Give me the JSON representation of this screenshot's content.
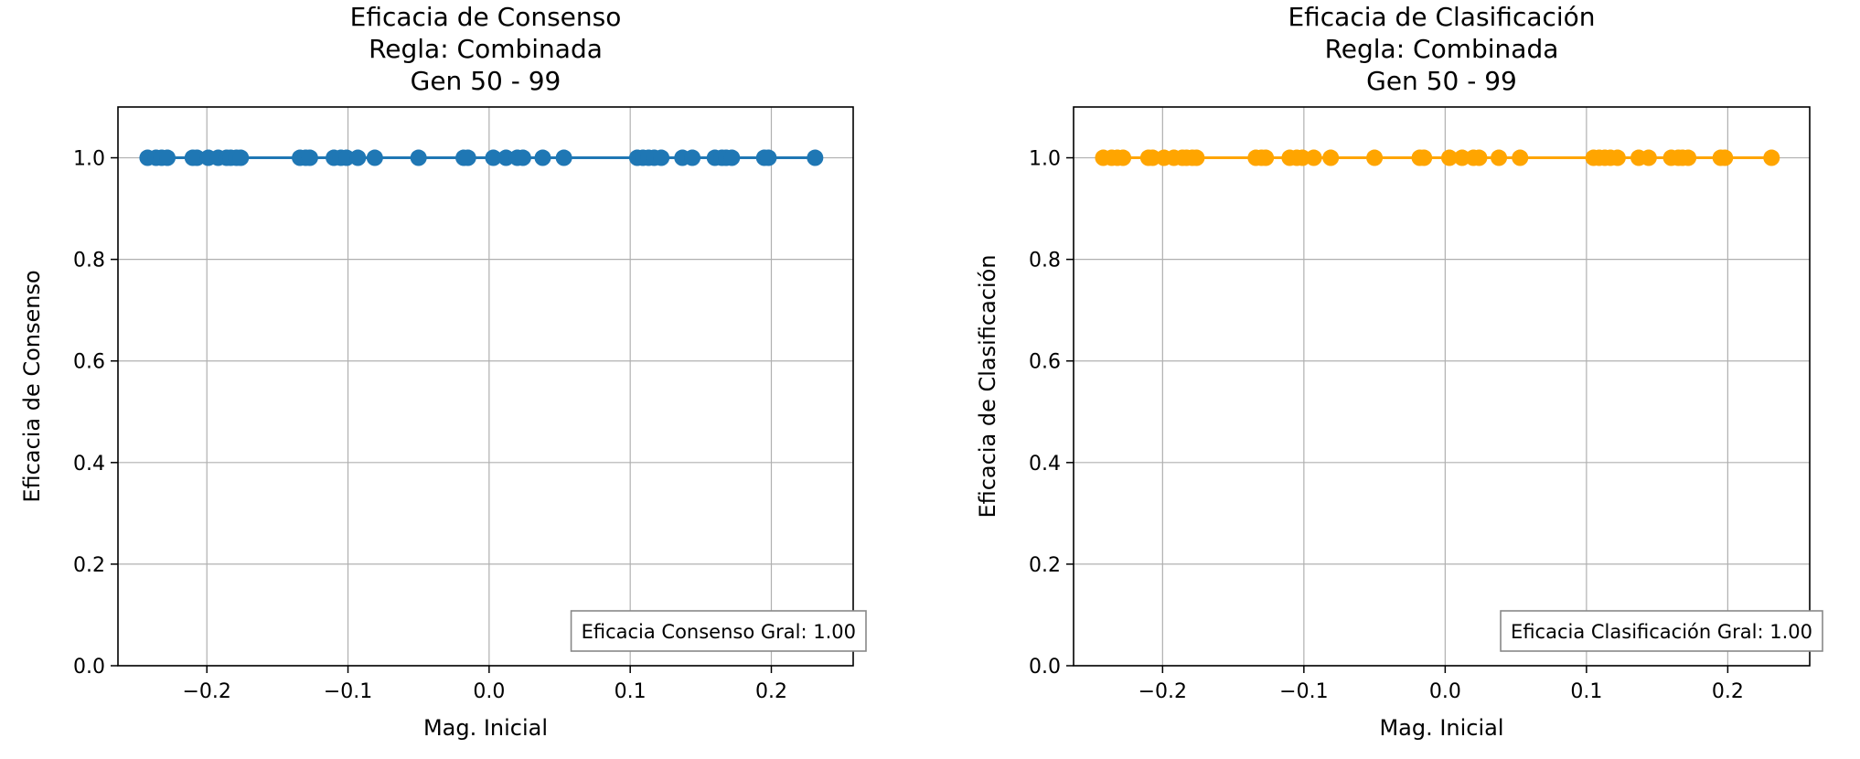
{
  "chart_data": [
    {
      "type": "scatter",
      "title_lines": [
        "Eficacia de Consenso",
        "Regla: Combinada",
        "Gen 50 - 99"
      ],
      "xlabel": "Mag. Inicial",
      "ylabel": "Eficacia de Consenso",
      "xlim": [
        -0.263,
        0.258
      ],
      "ylim": [
        0.0,
        1.1
      ],
      "xticks": [
        -0.2,
        -0.1,
        0.0,
        0.1,
        0.2
      ],
      "xtick_labels": [
        "−0.2",
        "−0.1",
        "0.0",
        "0.1",
        "0.2"
      ],
      "yticks": [
        0.0,
        0.2,
        0.4,
        0.6,
        0.8,
        1.0
      ],
      "ytick_labels": [
        "0.0",
        "0.2",
        "0.4",
        "0.6",
        "0.8",
        "1.0"
      ],
      "grid": true,
      "color": "#1f77b4",
      "annotation": "Eficacia Consenso Gral: 1.00",
      "annotation_position": "bottom-right",
      "series": [
        {
          "x": [
            -0.242,
            -0.236,
            -0.232,
            -0.228,
            -0.21,
            -0.207,
            -0.199,
            -0.192,
            -0.186,
            -0.183,
            -0.179,
            -0.176,
            -0.134,
            -0.13,
            -0.127,
            -0.11,
            -0.105,
            -0.101,
            -0.093,
            -0.081,
            -0.05,
            -0.018,
            -0.015,
            0.003,
            0.012,
            0.02,
            0.024,
            0.038,
            0.053,
            0.105,
            0.109,
            0.113,
            0.117,
            0.122,
            0.137,
            0.144,
            0.16,
            0.165,
            0.168,
            0.172,
            0.195,
            0.198,
            0.231
          ],
          "y": [
            1,
            1,
            1,
            1,
            1,
            1,
            1,
            1,
            1,
            1,
            1,
            1,
            1,
            1,
            1,
            1,
            1,
            1,
            1,
            1,
            1,
            1,
            1,
            1,
            1,
            1,
            1,
            1,
            1,
            1,
            1,
            1,
            1,
            1,
            1,
            1,
            1,
            1,
            1,
            1,
            1,
            1,
            1
          ]
        }
      ]
    },
    {
      "type": "scatter",
      "title_lines": [
        "Eficacia de Clasificación",
        "Regla: Combinada",
        "Gen 50 - 99"
      ],
      "xlabel": "Mag. Inicial",
      "ylabel": "Eficacia de Clasificación",
      "xlim": [
        -0.263,
        0.258
      ],
      "ylim": [
        0.0,
        1.1
      ],
      "xticks": [
        -0.2,
        -0.1,
        0.0,
        0.1,
        0.2
      ],
      "xtick_labels": [
        "−0.2",
        "−0.1",
        "0.0",
        "0.1",
        "0.2"
      ],
      "yticks": [
        0.0,
        0.2,
        0.4,
        0.6,
        0.8,
        1.0
      ],
      "ytick_labels": [
        "0.0",
        "0.2",
        "0.4",
        "0.6",
        "0.8",
        "1.0"
      ],
      "grid": true,
      "color": "#ffa500",
      "annotation": "Eficacia Clasificación Gral: 1.00",
      "annotation_position": "bottom-right",
      "series": [
        {
          "x": [
            -0.242,
            -0.236,
            -0.232,
            -0.228,
            -0.21,
            -0.207,
            -0.199,
            -0.192,
            -0.186,
            -0.183,
            -0.179,
            -0.176,
            -0.134,
            -0.13,
            -0.127,
            -0.11,
            -0.105,
            -0.101,
            -0.093,
            -0.081,
            -0.05,
            -0.018,
            -0.015,
            0.003,
            0.012,
            0.02,
            0.024,
            0.038,
            0.053,
            0.105,
            0.109,
            0.113,
            0.117,
            0.122,
            0.137,
            0.144,
            0.16,
            0.165,
            0.168,
            0.172,
            0.195,
            0.198,
            0.231
          ],
          "y": [
            1,
            1,
            1,
            1,
            1,
            1,
            1,
            1,
            1,
            1,
            1,
            1,
            1,
            1,
            1,
            1,
            1,
            1,
            1,
            1,
            1,
            1,
            1,
            1,
            1,
            1,
            1,
            1,
            1,
            1,
            1,
            1,
            1,
            1,
            1,
            1,
            1,
            1,
            1,
            1,
            1,
            1,
            1
          ]
        }
      ]
    }
  ]
}
